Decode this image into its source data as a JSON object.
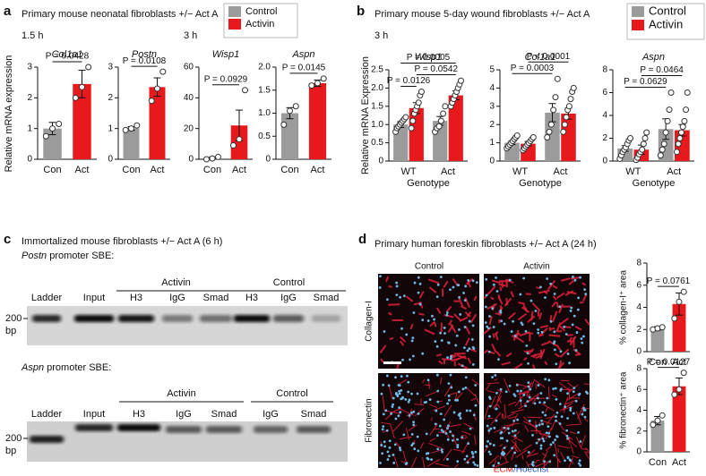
{
  "figure": {
    "panel_a": {
      "label": "a",
      "title": "Primary mouse neonatal fibroblasts +/− Act A",
      "times": [
        "1.5 h",
        "3 h"
      ],
      "ylabel": "Relative mRNA expression",
      "legend": [
        {
          "name": "Control",
          "color": "#9b9b9b"
        },
        {
          "name": "Activin",
          "color": "#e8191c"
        }
      ]
    },
    "panel_b": {
      "label": "b",
      "title": "Primary mouse 5-day wound fibroblasts +/− Act A",
      "time": "3 h",
      "ylabel": "Relative mRNA Expression",
      "legend": [
        {
          "name": "Control",
          "color": "#9b9b9b"
        },
        {
          "name": "Activin",
          "color": "#e8191c"
        }
      ]
    },
    "panel_c": {
      "label": "c",
      "title": "Immortalized mouse fibroblasts +/− Act A (6 h)",
      "gels": [
        {
          "gene": "Postn",
          "title": " promoter SBE:",
          "groups": [
            "Activin",
            "Control"
          ],
          "lanes": [
            "Ladder",
            "Input",
            "H3",
            "IgG",
            "Smad",
            "H3",
            "IgG",
            "Smad"
          ],
          "marker": "200",
          "unit": "bp"
        },
        {
          "gene": "Aspn",
          "title": " promoter SBE:",
          "groups": [
            "Activin",
            "Control"
          ],
          "lanes": [
            "Ladder",
            "Input",
            "H3",
            "IgG",
            "Smad",
            "IgG",
            "Smad"
          ],
          "marker": "200",
          "unit": "bp"
        }
      ]
    },
    "panel_d": {
      "label": "d",
      "title": "Primary human foreskin fibroblasts +/− Act A (24 h)",
      "columns": [
        "Control",
        "Activin"
      ],
      "rows": [
        "Collagen-I",
        "Fibronectin"
      ],
      "stain": [
        "ECM",
        "/Hoechst"
      ]
    }
  },
  "chart_data": [
    {
      "type": "bar",
      "title": "Col1a1",
      "categories": [
        "Con",
        "Act"
      ],
      "values": [
        1.0,
        2.45
      ],
      "errors": [
        0.2,
        0.45
      ],
      "points": [
        [
          0.75,
          1.0,
          1.15
        ],
        [
          2.0,
          2.35,
          3.0
        ]
      ],
      "colors": [
        "#9b9b9b",
        "#e8191c"
      ],
      "ylim": [
        0,
        3
      ],
      "yticks": [
        0,
        1,
        2,
        3
      ],
      "annotations": [
        {
          "text": "P = 0.0428",
          "from": 0,
          "to": 1
        }
      ]
    },
    {
      "type": "bar",
      "title": "Postn",
      "categories": [
        "Con",
        "Act"
      ],
      "values": [
        1.0,
        2.35
      ],
      "errors": [
        0.06,
        0.3
      ],
      "points": [
        [
          0.95,
          1.0,
          1.1
        ],
        [
          1.9,
          2.3,
          2.85
        ]
      ],
      "colors": [
        "#9b9b9b",
        "#e8191c"
      ],
      "ylim": [
        0,
        3
      ],
      "yticks": [
        0,
        1,
        2,
        3
      ],
      "annotations": [
        {
          "text": "P = 0.0108",
          "from": 0,
          "to": 1
        }
      ]
    },
    {
      "type": "bar",
      "title": "Wisp1",
      "categories": [
        "Con",
        "Act"
      ],
      "values": [
        0.8,
        22
      ],
      "errors": [
        0.5,
        10
      ],
      "points": [
        [
          0,
          0.5,
          1.5
        ],
        [
          9,
          13,
          45
        ]
      ],
      "colors": [
        "#9b9b9b",
        "#e8191c"
      ],
      "ylim": [
        0,
        60
      ],
      "yticks": [
        0,
        20,
        40,
        60
      ],
      "annotations": [
        {
          "text": "P = 0.0929",
          "from": 0,
          "to": 1
        }
      ]
    },
    {
      "type": "bar",
      "title": "Aspn",
      "categories": [
        "Con",
        "Act"
      ],
      "values": [
        1.0,
        1.65
      ],
      "errors": [
        0.12,
        0.07
      ],
      "points": [
        [
          0.75,
          1.05,
          1.15
        ],
        [
          1.6,
          1.65,
          1.75
        ]
      ],
      "colors": [
        "#9b9b9b",
        "#e8191c"
      ],
      "ylim": [
        0,
        2
      ],
      "yticks": [
        0,
        0.5,
        {
          "value": 1,
          "label": "1.0"
        },
        1.5,
        {
          "value": 2,
          "label": "2.0"
        }
      ],
      "annotations": [
        {
          "text": "P = 0.0145",
          "from": 0,
          "to": 1
        }
      ]
    },
    {
      "type": "grouped_bar",
      "title": "Wisp1",
      "xlabel": "Genotype",
      "categories": [
        "WT",
        "Act"
      ],
      "ylim": [
        0,
        2.5
      ],
      "yticks": [
        0,
        0.5,
        {
          "value": 1,
          "label": "1.0"
        },
        1.5,
        {
          "value": 2,
          "label": "2.0"
        },
        2.5
      ],
      "series": [
        {
          "name": "Control",
          "color": "#9b9b9b",
          "values": [
            1.0,
            1.1
          ],
          "errors": [
            0.08,
            0.12
          ],
          "points": [
            [
              0.8,
              0.9,
              0.95,
              1.0,
              1.05,
              1.1,
              1.15,
              1.2
            ],
            [
              0.8,
              0.9,
              0.95,
              1.1,
              1.3,
              1.5
            ]
          ]
        },
        {
          "name": "Activin",
          "color": "#e8191c",
          "values": [
            1.45,
            1.8
          ],
          "errors": [
            0.15,
            0.12
          ],
          "points": [
            [
              0.9,
              1.1,
              1.3,
              1.4,
              1.5,
              1.6,
              1.8,
              1.9
            ],
            [
              1.5,
              1.6,
              1.7,
              1.8,
              1.9,
              2.0,
              2.1,
              2.2
            ]
          ]
        }
      ],
      "annotations": [
        {
          "text": "P = 0.0126",
          "from": 0,
          "to": 1
        },
        {
          "text": "P = 0.0542",
          "from": 1,
          "to": 3
        },
        {
          "text": "P = 0.0005",
          "from": 0,
          "to": 3
        }
      ]
    },
    {
      "type": "grouped_bar",
      "title": "Col1a1",
      "xlabel": "Genotype",
      "categories": [
        "WT",
        "Act"
      ],
      "ylim": [
        0,
        5
      ],
      "yticks": [
        0,
        1,
        2,
        3,
        4,
        5
      ],
      "series": [
        {
          "name": "Control",
          "color": "#9b9b9b",
          "values": [
            1.0,
            2.65
          ],
          "errors": [
            0.1,
            0.5
          ],
          "points": [
            [
              0.7,
              0.8,
              0.9,
              1.0,
              1.1,
              1.2,
              1.3,
              1.4
            ],
            [
              1.3,
              1.6,
              2.0,
              2.8,
              3.5,
              4.5
            ]
          ]
        },
        {
          "name": "Activin",
          "color": "#e8191c",
          "values": [
            0.95,
            2.6
          ],
          "errors": [
            0.12,
            0.3
          ],
          "points": [
            [
              0.6,
              0.7,
              0.8,
              0.9,
              1.0,
              1.1,
              1.2,
              1.3
            ],
            [
              1.6,
              2.0,
              2.4,
              2.8,
              3.0,
              3.4,
              3.8,
              4.0
            ]
          ]
        }
      ],
      "annotations": [
        {
          "text": "P = 0.0003",
          "from": 0,
          "to": 2
        },
        {
          "text": "P < 0.0001",
          "from": 1,
          "to": 3
        }
      ]
    },
    {
      "type": "grouped_bar",
      "title": "Aspn",
      "xlabel": "Genotype",
      "categories": [
        "WT",
        "Act"
      ],
      "ylim": [
        0,
        8
      ],
      "yticks": [
        0,
        2,
        4,
        6,
        8
      ],
      "series": [
        {
          "name": "Control",
          "color": "#9b9b9b",
          "values": [
            1.1,
            2.8
          ],
          "errors": [
            0.25,
            0.9
          ],
          "points": [
            [
              0.2,
              0.5,
              0.8,
              1.0,
              1.2,
              1.5,
              1.8,
              2.0
            ],
            [
              0.5,
              1.0,
              1.5,
              2.5,
              3.5,
              4.5,
              6.0
            ]
          ]
        },
        {
          "name": "Activin",
          "color": "#e8191c",
          "values": [
            1.0,
            2.7
          ],
          "errors": [
            0.4,
            0.5
          ],
          "points": [
            [
              0.1,
              0.3,
              0.6,
              0.8,
              1.0,
              1.5,
              2.0,
              2.5
            ],
            [
              0.8,
              1.5,
              2.0,
              2.5,
              3.0,
              3.5,
              4.5,
              6.0
            ]
          ]
        }
      ],
      "annotations": [
        {
          "text": "P = 0.0629",
          "from": 0,
          "to": 2
        },
        {
          "text": "P = 0.0464",
          "from": 1,
          "to": 3
        }
      ]
    },
    {
      "type": "bar",
      "ylabel": "% collagen-I⁺ area",
      "categories": [
        "Con",
        "Act"
      ],
      "values": [
        2.1,
        4.3
      ],
      "errors": [
        0.15,
        1.0
      ],
      "points": [
        [
          2.0,
          2.1,
          2.2
        ],
        [
          3.0,
          4.5,
          5.4
        ]
      ],
      "colors": [
        "#9b9b9b",
        "#e8191c"
      ],
      "ylim": [
        0,
        8
      ],
      "yticks": [
        0,
        2,
        4,
        6,
        8
      ],
      "annotations": [
        {
          "text": "P = 0.0761",
          "from": 0,
          "to": 1
        }
      ]
    },
    {
      "type": "bar",
      "ylabel": "% fibronectin⁺ area",
      "categories": [
        "Con",
        "Act"
      ],
      "values": [
        3.0,
        6.3
      ],
      "errors": [
        0.4,
        0.8
      ],
      "points": [
        [
          2.6,
          3.0,
          3.5
        ],
        [
          5.5,
          6.0,
          7.6
        ]
      ],
      "colors": [
        "#9b9b9b",
        "#e8191c"
      ],
      "ylim": [
        0,
        8
      ],
      "yticks": [
        0,
        2,
        4,
        6,
        8
      ],
      "annotations": [
        {
          "text": "P = 0.0127",
          "from": 0,
          "to": 1
        }
      ]
    }
  ]
}
